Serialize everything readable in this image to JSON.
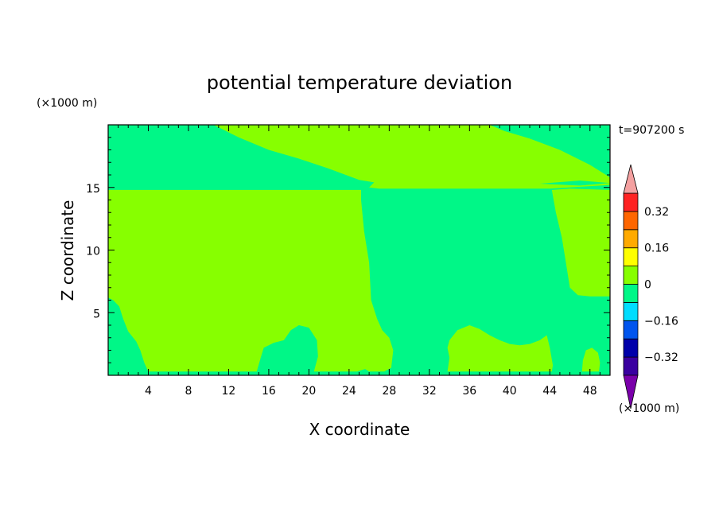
{
  "chart_data": {
    "type": "heatmap",
    "title": "potential temperature deviation",
    "xlabel": "X coordinate",
    "ylabel": "Z coordinate",
    "x_unit": "(×1000 m)",
    "y_unit": "(×1000 m)",
    "time_label": "t=907200 s",
    "xlim": [
      0,
      50
    ],
    "ylim": [
      0,
      20
    ],
    "x_ticks": [
      4,
      8,
      12,
      16,
      20,
      24,
      28,
      32,
      36,
      40,
      44,
      48
    ],
    "y_ticks": [
      5,
      10,
      15
    ],
    "colors": {
      "zero_to_pos": "#87ff00",
      "neg_to_zero": "#00f787"
    },
    "colorbar": {
      "levels": [
        "<-0.40",
        "-0.40",
        "-0.32",
        "-0.24",
        "-0.16",
        "-0.08",
        "0",
        "0.08",
        "0.16",
        "0.24",
        "0.32",
        "0.40",
        ">0.40"
      ],
      "colors": [
        "#7a00aa",
        "#3a00a0",
        "#0000aa",
        "#0055ee",
        "#00ddff",
        "#00f787",
        "#87ff00",
        "#ffff00",
        "#ffaa00",
        "#ff6600",
        "#ff2222",
        "#f4a0a0"
      ],
      "labeled_ticks": [
        "-0.32",
        "-0.16",
        "0",
        "0.16",
        "0.32"
      ]
    },
    "regions": [
      {
        "name": "positive-region-lower-left",
        "class": "zero_to_pos",
        "polygon": [
          [
            0,
            14.8
          ],
          [
            5,
            14.8
          ],
          [
            10,
            14.8
          ],
          [
            20,
            14.8
          ],
          [
            25.2,
            14.8
          ],
          [
            25.2,
            14
          ],
          [
            25.5,
            11.5
          ],
          [
            26,
            9
          ],
          [
            26.2,
            6
          ],
          [
            26.8,
            4.5
          ],
          [
            27.3,
            3.6
          ],
          [
            28,
            3
          ],
          [
            28.4,
            2
          ],
          [
            28.2,
            0.6
          ],
          [
            27.5,
            0.3
          ],
          [
            26,
            0.3
          ],
          [
            25.6,
            0.5
          ],
          [
            24.8,
            0.3
          ],
          [
            24,
            0.3
          ],
          [
            21,
            0.3
          ],
          [
            20.5,
            0.3
          ],
          [
            20.9,
            1.5
          ],
          [
            20.8,
            2.8
          ],
          [
            20,
            3.8
          ],
          [
            19,
            4
          ],
          [
            18.2,
            3.6
          ],
          [
            17.5,
            2.8
          ],
          [
            16.5,
            2.6
          ],
          [
            15.5,
            2.2
          ],
          [
            15.2,
            1.4
          ],
          [
            14.8,
            0.3
          ],
          [
            12,
            0.3
          ],
          [
            8,
            0.3
          ],
          [
            5,
            0.3
          ],
          [
            4,
            0.3
          ],
          [
            3.6,
            1
          ],
          [
            3.2,
            2
          ],
          [
            2.8,
            2.7
          ],
          [
            2,
            3.5
          ],
          [
            1.5,
            4.5
          ],
          [
            1.1,
            5.5
          ],
          [
            0.5,
            6
          ],
          [
            0,
            6.2
          ]
        ]
      },
      {
        "name": "positive-region-right-middle",
        "class": "zero_to_pos",
        "polygon": [
          [
            33.8,
            0.3
          ],
          [
            34,
            1.4
          ],
          [
            33.8,
            2.2
          ],
          [
            34,
            2.8
          ],
          [
            34.8,
            3.6
          ],
          [
            36,
            4
          ],
          [
            37,
            3.7
          ],
          [
            38,
            3.2
          ],
          [
            39,
            2.8
          ],
          [
            40,
            2.5
          ],
          [
            41,
            2.4
          ],
          [
            42,
            2.5
          ],
          [
            43,
            2.8
          ],
          [
            43.7,
            3.2
          ],
          [
            44,
            2.2
          ],
          [
            44.3,
            0.8
          ],
          [
            44.2,
            0.3
          ],
          [
            40,
            0.3
          ],
          [
            36,
            0.3
          ]
        ]
      },
      {
        "name": "positive-region-right-column",
        "class": "zero_to_pos",
        "polygon": [
          [
            44.2,
            14.8
          ],
          [
            44.6,
            13
          ],
          [
            45.2,
            11
          ],
          [
            45.6,
            9
          ],
          [
            46,
            7
          ],
          [
            46.8,
            6.4
          ],
          [
            48,
            6.3
          ],
          [
            50,
            6.3
          ],
          [
            50,
            14.8
          ],
          [
            46,
            14.9
          ]
        ]
      },
      {
        "name": "positive-region-bottom-right",
        "class": "zero_to_pos",
        "polygon": [
          [
            47.2,
            0.3
          ],
          [
            47.3,
            1.2
          ],
          [
            47.6,
            2
          ],
          [
            48.2,
            2.2
          ],
          [
            48.8,
            1.8
          ],
          [
            49,
            1
          ],
          [
            48.9,
            0.3
          ]
        ]
      },
      {
        "name": "positive-region-top-band",
        "class": "zero_to_pos",
        "polygon": [
          [
            10.5,
            20
          ],
          [
            13,
            19
          ],
          [
            16,
            18
          ],
          [
            19,
            17.3
          ],
          [
            22,
            16.5
          ],
          [
            25,
            15.6
          ],
          [
            26.5,
            15.4
          ],
          [
            26,
            15
          ],
          [
            27,
            14.9
          ],
          [
            30,
            14.9
          ],
          [
            36,
            14.9
          ],
          [
            44,
            14.9
          ],
          [
            50,
            15.2
          ],
          [
            50,
            15.8
          ],
          [
            48,
            16.8
          ],
          [
            45,
            18
          ],
          [
            42,
            18.9
          ],
          [
            39.5,
            19.5
          ],
          [
            38,
            20
          ]
        ]
      },
      {
        "name": "negative-filament-upper",
        "class": "neg_to_zero",
        "polygon": [
          [
            17,
            15.3
          ],
          [
            22,
            15.5
          ],
          [
            25,
            15.3
          ],
          [
            22,
            15.15
          ],
          [
            17,
            15.25
          ]
        ]
      },
      {
        "name": "negative-filament-right",
        "class": "neg_to_zero",
        "polygon": [
          [
            43,
            15.3
          ],
          [
            47,
            15.55
          ],
          [
            50,
            15.35
          ],
          [
            47,
            15.15
          ]
        ]
      }
    ]
  }
}
